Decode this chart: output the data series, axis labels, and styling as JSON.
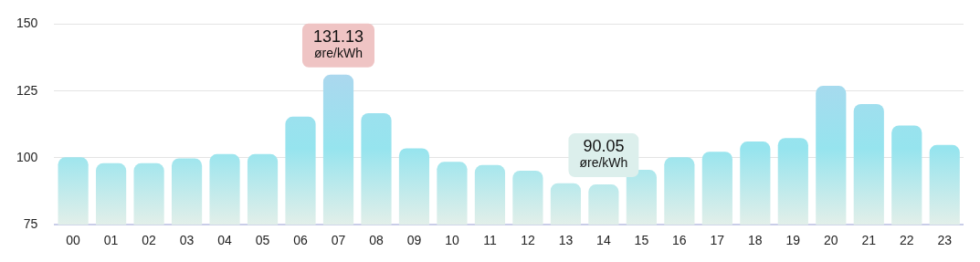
{
  "chart_data": {
    "type": "bar",
    "categories": [
      "00",
      "01",
      "02",
      "03",
      "04",
      "05",
      "06",
      "07",
      "08",
      "09",
      "10",
      "11",
      "12",
      "13",
      "14",
      "15",
      "16",
      "17",
      "18",
      "19",
      "20",
      "21",
      "22",
      "23"
    ],
    "values": [
      100.2,
      98.0,
      98.0,
      99.8,
      101.4,
      101.4,
      115.4,
      131.13,
      116.7,
      103.6,
      98.5,
      97.3,
      95.2,
      90.5,
      90.05,
      95.5,
      100.2,
      102.3,
      106.1,
      107.4,
      126.9,
      120.1,
      112.1,
      104.8
    ],
    "colors": [
      "#9ae4ee",
      "#9ae4ee",
      "#9ae4ee",
      "#9ae4ee",
      "#9be3ee",
      "#9be3ee",
      "#aad8ee",
      "#b9cfee",
      "#a9d9ee",
      "#9de2ee",
      "#9ae4ee",
      "#9ae4ee",
      "#9ae4ee",
      "#9ce4ee",
      "#9ce4ee",
      "#9ae4ee",
      "#9ae4ee",
      "#9be3ee",
      "#9fe0ee",
      "#a0dfee",
      "#b6d1ee",
      "#b0d5ee",
      "#a6dbee",
      "#9de2ee"
    ],
    "ylim": [
      75,
      150
    ],
    "yticks": [
      75,
      100,
      125,
      150
    ],
    "grid": "y",
    "legend": false,
    "annotations": [
      {
        "text": "131.13\nøre/kWh",
        "x": "07",
        "y": 131.13
      },
      {
        "text": "90.05\nøre/kWh",
        "x": "14",
        "y": 90.05
      }
    ]
  }
}
